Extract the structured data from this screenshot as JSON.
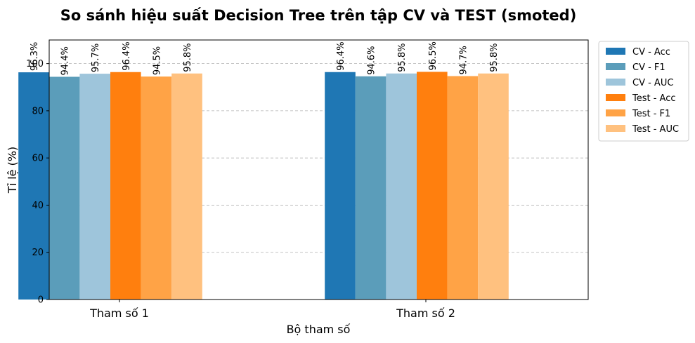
{
  "chart_data": {
    "type": "bar",
    "title": "So sánh hiệu suất Decision Tree trên tập CV và TEST (smoted)",
    "xlabel": "Bộ tham số",
    "ylabel": "Tỉ lệ (%)",
    "categories": [
      "Tham số 1",
      "Tham số 2"
    ],
    "ylim": [
      0,
      110
    ],
    "yticks": [
      0,
      20,
      40,
      60,
      80,
      100
    ],
    "grid": "y-dashed",
    "legend_position": "outside-top-right",
    "series": [
      {
        "name": "CV - Acc",
        "color": "#1f77b4",
        "values": [
          96.3,
          96.4
        ],
        "labels": [
          "96.3%",
          "96.4%"
        ]
      },
      {
        "name": "CV - F1",
        "color": "#5b9dba",
        "values": [
          94.4,
          94.6
        ],
        "labels": [
          "94.4%",
          "94.6%"
        ]
      },
      {
        "name": "CV - AUC",
        "color": "#9ec5db",
        "values": [
          95.7,
          95.8
        ],
        "labels": [
          "95.7%",
          "95.8%"
        ]
      },
      {
        "name": "Test - Acc",
        "color": "#ff7f0e",
        "values": [
          96.4,
          96.5
        ],
        "labels": [
          "96.4%",
          "96.5%"
        ]
      },
      {
        "name": "Test - F1",
        "color": "#ffa346",
        "values": [
          94.5,
          94.7
        ],
        "labels": [
          "94.5%",
          "94.7%"
        ]
      },
      {
        "name": "Test - AUC",
        "color": "#ffc17f",
        "values": [
          95.8,
          95.8
        ],
        "labels": [
          "95.8%",
          "95.8%"
        ]
      }
    ]
  }
}
